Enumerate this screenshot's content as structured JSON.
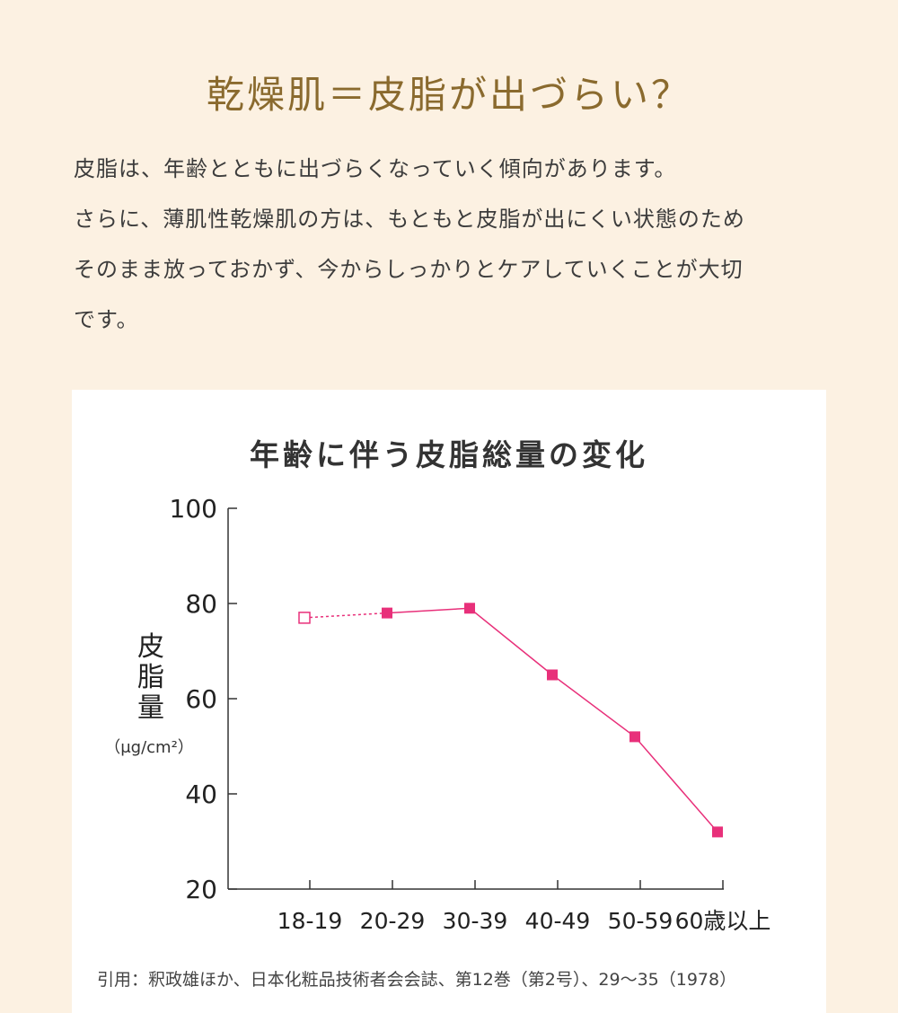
{
  "heading": "乾燥肌＝皮脂が出づらい？",
  "intro": {
    "line1": "皮脂は、年齢とともに出づらくなっていく傾向があります。",
    "line2": "さらに、薄肌性乾燥肌の方は、もともと皮脂が出にくい状態のため",
    "line3": "そのまま放っておかず、今からしっかりとケアしていくことが大切",
    "line4": "です。"
  },
  "chart_data": {
    "type": "line",
    "title": "年齢に伴う皮脂総量の変化",
    "ylabel": "皮脂量",
    "yunit": "（μg/cm²）",
    "categories": [
      "18-19",
      "20-29",
      "30-39",
      "40-49",
      "50-59",
      "60歳以上"
    ],
    "values": [
      77,
      78,
      79,
      65,
      52,
      32
    ],
    "first_point_style": "hollow-dotted",
    "ylim": [
      20,
      100
    ],
    "yticks": [
      20,
      40,
      60,
      80,
      100
    ],
    "series_color": "#e8307a",
    "grid": false
  },
  "citation": "引用：釈政雄ほか、日本化粧品技術者会会誌、第12巻（第2号）、29〜35（1978）"
}
